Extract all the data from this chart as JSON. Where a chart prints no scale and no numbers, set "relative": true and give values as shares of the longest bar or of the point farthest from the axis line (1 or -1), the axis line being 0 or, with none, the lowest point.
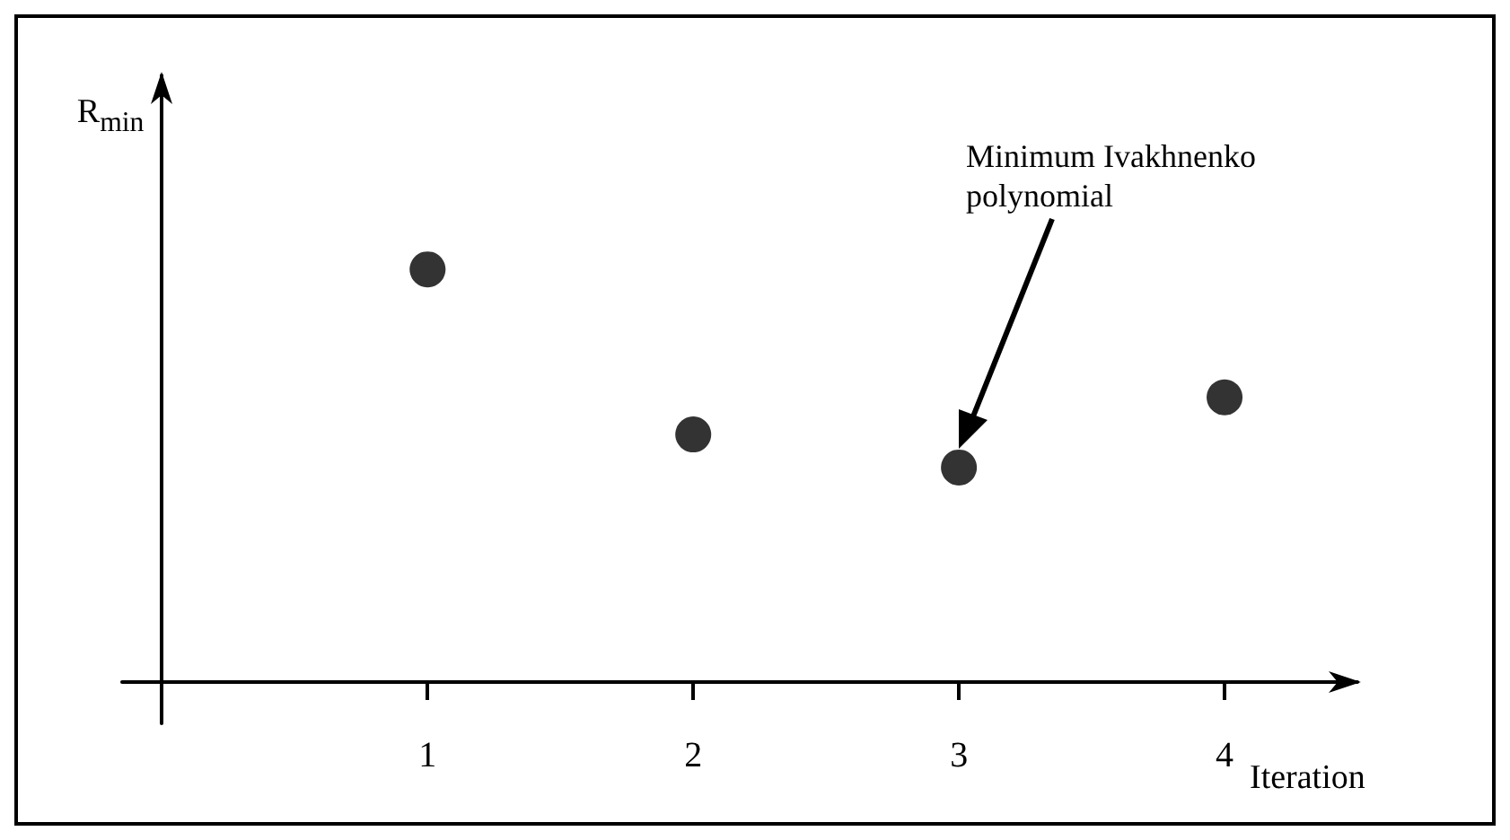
{
  "chart_data": {
    "type": "scatter",
    "ylabel": "R$_{min}$",
    "xlabel": "Iteration",
    "x": [
      1,
      2,
      3,
      4
    ],
    "values": [
      1,
      0.6,
      0.52,
      0.69
    ],
    "relative": true,
    "color": "#000000",
    "marker": "circle",
    "xlim": [
      -0.15,
      4.5
    ],
    "xticks": [
      1,
      2,
      3,
      4
    ],
    "grid": false,
    "annotations": [
      "Minimum Ivakhnenko polynomial"
    ]
  }
}
